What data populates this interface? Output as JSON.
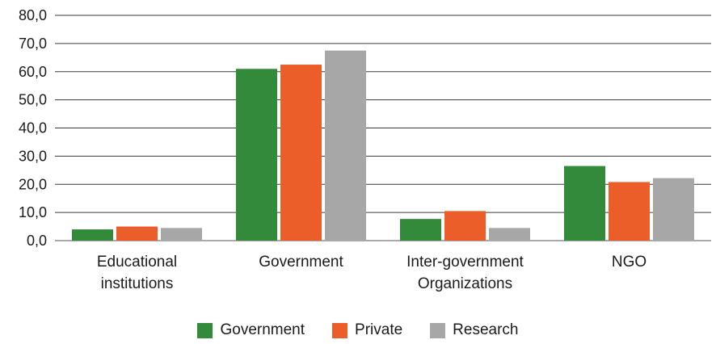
{
  "chart_data": {
    "type": "bar",
    "categories": [
      [
        "Educational",
        "institutions"
      ],
      [
        "Government"
      ],
      [
        "Inter-government",
        "Organizations"
      ],
      [
        "NGO"
      ]
    ],
    "series": [
      {
        "name": "Government",
        "color": "#338a3a",
        "values": [
          4.0,
          61.0,
          7.7,
          26.5
        ]
      },
      {
        "name": "Private",
        "color": "#eb5e2a",
        "values": [
          5.0,
          62.5,
          10.5,
          20.8
        ]
      },
      {
        "name": "Research",
        "color": "#a7a7a7",
        "values": [
          4.5,
          67.5,
          4.5,
          22.2
        ]
      }
    ],
    "yticks": [
      "0,0",
      "10,0",
      "20,0",
      "30,0",
      "40,0",
      "50,0",
      "60,0",
      "70,0",
      "80,0"
    ],
    "ylim": [
      0,
      80
    ],
    "grid": true,
    "legend_position": "bottom"
  }
}
